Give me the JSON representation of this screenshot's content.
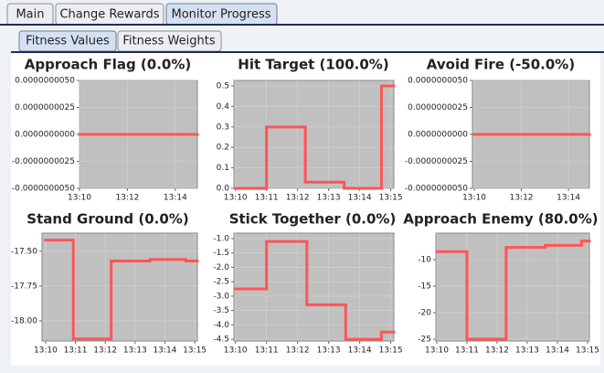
{
  "tabs": [
    "Main",
    "Change Rewards",
    "Monitor Progress"
  ],
  "subtabs": [
    "Fitness Values",
    "Fitness Weights"
  ],
  "chart_data": [
    {
      "type": "line",
      "drawstyle": "steps-post",
      "title": "Approach Flag (0.0%)",
      "color": "#ff5555",
      "grid": true,
      "x": [
        10
      ],
      "values": [
        0
      ],
      "xlim": [
        10,
        14.92
      ],
      "xticks": [
        {
          "value": 10,
          "label": "13:10"
        },
        {
          "value": 12,
          "label": "13:12"
        },
        {
          "value": 14,
          "label": "13:14"
        }
      ],
      "ylim": [
        -5e-09,
        5e-09
      ],
      "yticks": [
        {
          "value": 5e-09,
          "label": "0.0000000050"
        },
        {
          "value": 2.5e-09,
          "label": "0.0000000025"
        },
        {
          "value": 0,
          "label": "0.0000000000"
        },
        {
          "value": -2.5e-09,
          "label": "-0.0000000025"
        },
        {
          "value": -5e-09,
          "label": "-0.0000000050"
        }
      ]
    },
    {
      "type": "line",
      "drawstyle": "steps-post",
      "title": "Hit Target (100.0%)",
      "color": "#ff5555",
      "grid": true,
      "x": [
        10,
        11,
        12.25,
        13.5,
        14.7
      ],
      "values": [
        0,
        0.3,
        0.03,
        0,
        0.5
      ],
      "xlim": [
        9.95,
        15.1
      ],
      "xticks": [
        {
          "value": 10,
          "label": "13:10"
        },
        {
          "value": 11,
          "label": "13:11"
        },
        {
          "value": 12,
          "label": "13:12"
        },
        {
          "value": 13,
          "label": "13:13"
        },
        {
          "value": 14,
          "label": "13:14"
        },
        {
          "value": 15,
          "label": "13:15"
        }
      ],
      "ylim": [
        0,
        0.527
      ],
      "yticks": [
        {
          "value": 0,
          "label": "0.0"
        },
        0.1,
        0.2,
        0.3,
        0.4,
        0.5
      ]
    },
    {
      "type": "line",
      "drawstyle": "steps-post",
      "title": "Avoid Fire (-50.0%)",
      "color": "#ff5555",
      "grid": true,
      "x": [
        10
      ],
      "values": [
        0
      ],
      "xlim": [
        9.92,
        14.89
      ],
      "xticks": [
        {
          "value": 10,
          "label": "13:10"
        },
        {
          "value": 12,
          "label": "13:12"
        },
        {
          "value": 14,
          "label": "13:14"
        }
      ],
      "ylim": [
        -5e-09,
        5e-09
      ],
      "yticks": [
        {
          "value": 5e-09,
          "label": "0.0000000050"
        },
        {
          "value": 2.5e-09,
          "label": "0.0000000025"
        },
        {
          "value": 0,
          "label": "0.0000000000"
        },
        {
          "value": -2.5e-09,
          "label": "-0.0000000025"
        },
        {
          "value": -5e-09,
          "label": "-0.0000000050"
        }
      ]
    },
    {
      "type": "line",
      "drawstyle": "steps-post",
      "title": "Stand Ground (0.0%)",
      "color": "#ff5555",
      "grid": true,
      "x": [
        10,
        10.93,
        12.2,
        13.5,
        14.7
      ],
      "values": [
        -17.42,
        -18.13,
        -17.57,
        -17.56,
        -17.57
      ],
      "xlim": [
        9.88,
        15.09
      ],
      "xticks": [
        {
          "value": 10,
          "label": "13:10"
        },
        {
          "value": 11,
          "label": "13:11"
        },
        {
          "value": 12,
          "label": "13:12"
        },
        {
          "value": 13,
          "label": "13:13"
        },
        {
          "value": 14,
          "label": "13:14"
        },
        {
          "value": 15,
          "label": "13:15"
        }
      ],
      "ylim": [
        -18.145,
        -17.37
      ],
      "yticks": [
        {
          "value": -17.5,
          "label": "-17.50"
        },
        -17.75,
        {
          "value": -18,
          "label": "-18.00"
        }
      ]
    },
    {
      "type": "line",
      "drawstyle": "steps-post",
      "title": "Stick Together (0.0%)",
      "color": "#ff5555",
      "grid": true,
      "x": [
        10,
        11,
        12.3,
        13.55,
        14.7
      ],
      "values": [
        -2.75,
        -1.1,
        -3.3,
        -4.5,
        -4.25
      ],
      "xlim": [
        9.95,
        15.1
      ],
      "xticks": [
        {
          "value": 10,
          "label": "13:10"
        },
        {
          "value": 11,
          "label": "13:11"
        },
        {
          "value": 12,
          "label": "13:12"
        },
        {
          "value": 13,
          "label": "13:13"
        },
        {
          "value": 14,
          "label": "13:14"
        },
        {
          "value": 15,
          "label": "13:15"
        }
      ],
      "ylim": [
        -4.56,
        -0.81
      ],
      "yticks": [
        {
          "value": -1,
          "label": "-1.0"
        },
        -1.5,
        {
          "value": -2,
          "label": "-2.0"
        },
        -2.5,
        {
          "value": -3,
          "label": "-3.0"
        },
        -3.5,
        {
          "value": -4,
          "label": "-4.0"
        },
        -4.5
      ]
    },
    {
      "type": "line",
      "drawstyle": "steps-post",
      "title": "Approach Enemy (80.0%)",
      "color": "#ff5555",
      "grid": true,
      "x": [
        10,
        11,
        12.3,
        13.6,
        14.8
      ],
      "values": [
        -8.5,
        -25,
        -7.7,
        -7.3,
        -6.5
      ],
      "xlim": [
        9.97,
        15.06
      ],
      "xticks": [
        {
          "value": 10,
          "label": "13:10"
        },
        {
          "value": 11,
          "label": "13:11"
        },
        {
          "value": 12,
          "label": "13:12"
        },
        {
          "value": 13,
          "label": "13:13"
        },
        {
          "value": 14,
          "label": "13:14"
        },
        {
          "value": 15,
          "label": "13:15"
        }
      ],
      "ylim": [
        -25.34,
        -5
      ],
      "yticks": [
        -10,
        -15,
        -20,
        -25
      ]
    }
  ]
}
